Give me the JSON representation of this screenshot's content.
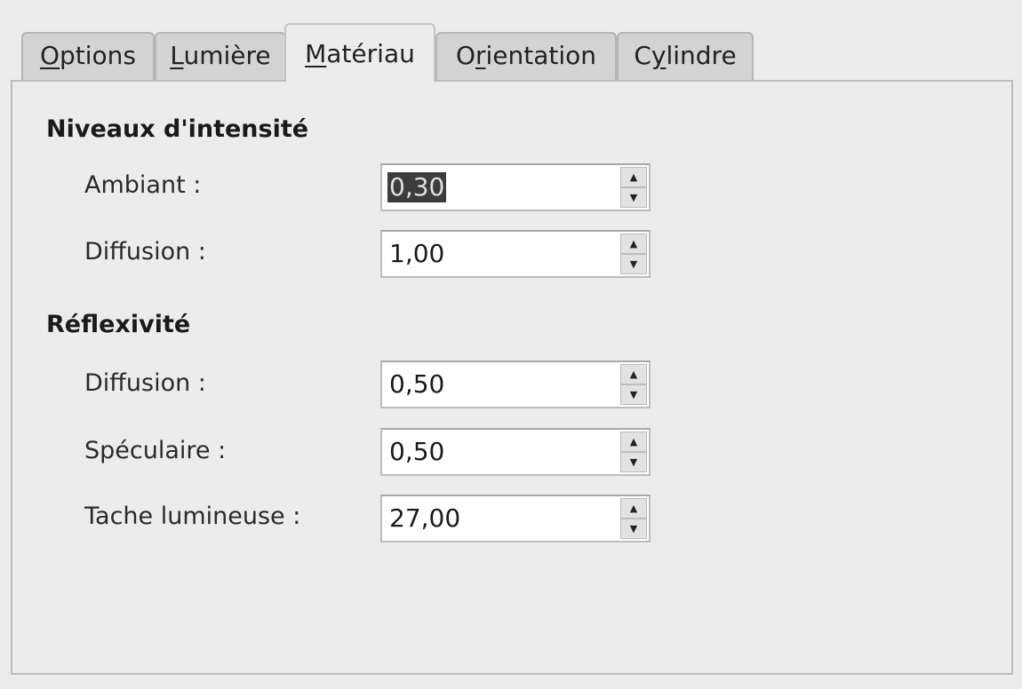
{
  "tabs": [
    {
      "pre": "",
      "key": "O",
      "post": "ptions",
      "active": false
    },
    {
      "pre": "",
      "key": "L",
      "post": "umière",
      "active": false
    },
    {
      "pre": "",
      "key": "M",
      "post": "atériau",
      "active": true
    },
    {
      "pre": "O",
      "key": "r",
      "post": "ientation",
      "active": false
    },
    {
      "pre": "C",
      "key": "y",
      "post": "lindre",
      "active": false
    }
  ],
  "sections": {
    "intensity": {
      "title": "Niveaux d'intensité",
      "rows": [
        {
          "label": "Ambiant :",
          "value": "0,30",
          "selected": true
        },
        {
          "label": "Diffusion :",
          "value": "1,00"
        }
      ]
    },
    "reflexivity": {
      "title": "Réflexivité",
      "rows": [
        {
          "label": "Diffusion :",
          "value": "0,50"
        },
        {
          "label": "Spéculaire :",
          "value": "0,50"
        },
        {
          "label": "Tache lumineuse :",
          "value": "27,00"
        }
      ]
    }
  },
  "icons": {
    "up": "triangle-up",
    "down": "triangle-down"
  }
}
